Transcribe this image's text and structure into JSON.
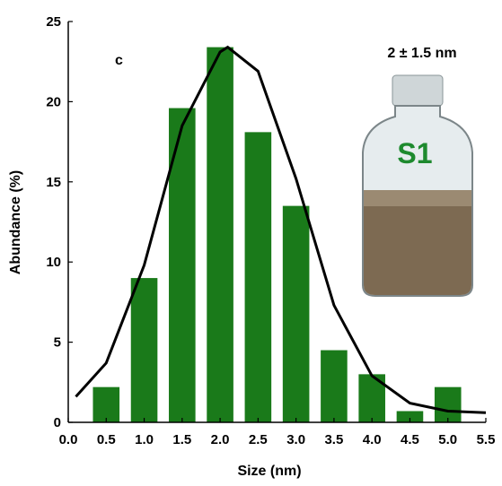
{
  "chart_data": {
    "type": "bar",
    "xlabel": "Size (nm)",
    "ylabel": "Abundance (%)",
    "x": [
      0.5,
      1.0,
      1.5,
      2.0,
      2.5,
      3.0,
      3.5,
      4.0,
      4.5,
      5.0
    ],
    "values": [
      2.2,
      9.0,
      19.6,
      23.4,
      18.1,
      13.5,
      4.5,
      3.0,
      0.7,
      2.2
    ],
    "color": "#1a7a1a",
    "curve": {
      "type": "line",
      "color": "#000000",
      "x": [
        0.1,
        0.5,
        1.0,
        1.5,
        2.0,
        2.1,
        2.5,
        3.0,
        3.5,
        4.0,
        4.5,
        5.0,
        5.5
      ],
      "values": [
        1.6,
        3.7,
        9.8,
        18.5,
        23.1,
        23.4,
        21.9,
        15.2,
        7.3,
        2.9,
        1.2,
        0.7,
        0.6
      ]
    },
    "xlim": [
      0,
      5.5
    ],
    "xticks": [
      {
        "value": 0,
        "label": "0.0"
      },
      0.5,
      {
        "value": 1,
        "label": "1.0"
      },
      1.5,
      {
        "value": 2,
        "label": "2.0"
      },
      2.5,
      {
        "value": 3,
        "label": "3.0"
      },
      3.5,
      {
        "value": 4,
        "label": "4.0"
      },
      4.5,
      {
        "value": 5,
        "label": "5.0"
      },
      5.5
    ],
    "ylim": [
      0,
      25
    ],
    "yticks": [
      0,
      5,
      10,
      15,
      20,
      25
    ],
    "annotations": [
      "c",
      "2 ± 1.5 nm",
      "S1"
    ]
  }
}
